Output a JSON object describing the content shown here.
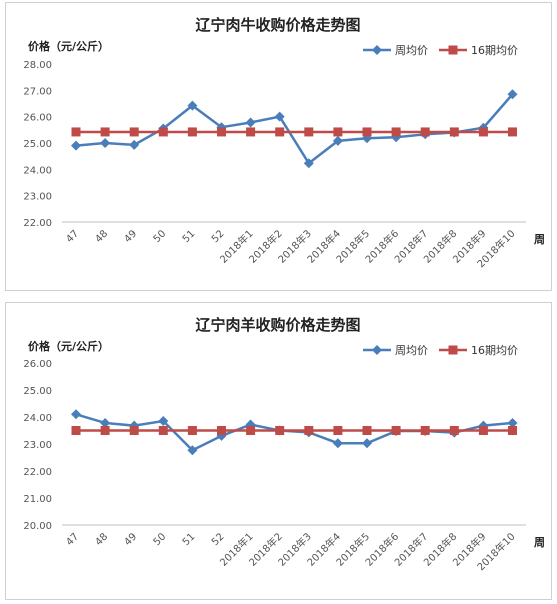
{
  "chart_data": [
    {
      "type": "line",
      "title": "辽宁肉牛收购价格走势图",
      "ylabel": "价格（元/公斤）",
      "xlabel": "周",
      "ylim": [
        22,
        28
      ],
      "yticks": [
        "22.00",
        "23.00",
        "24.00",
        "25.00",
        "26.00",
        "27.00",
        "28.00"
      ],
      "categories": [
        "47",
        "48",
        "49",
        "50",
        "51",
        "52",
        "2018年1",
        "2018年2",
        "2018年3",
        "2018年4",
        "2018年5",
        "2018年6",
        "2018年7",
        "2018年8",
        "2018年9",
        "2018年10"
      ],
      "series": [
        {
          "name": "周均价",
          "color": "#4a7ebb",
          "marker": "diamond",
          "values": [
            24.9,
            25.0,
            24.93,
            25.55,
            26.42,
            25.6,
            25.78,
            26.0,
            24.23,
            25.08,
            25.18,
            25.22,
            25.33,
            25.4,
            25.58,
            26.85
          ]
        },
        {
          "name": "16期均价",
          "color": "#be4b48",
          "marker": "square",
          "values": [
            25.42,
            25.42,
            25.42,
            25.42,
            25.42,
            25.42,
            25.42,
            25.42,
            25.42,
            25.42,
            25.42,
            25.42,
            25.42,
            25.42,
            25.42,
            25.42
          ]
        }
      ],
      "grid": false,
      "legend": "top-right"
    },
    {
      "type": "line",
      "title": "辽宁肉羊收购价格走势图",
      "ylabel": "价格（元/公斤）",
      "xlabel": "周",
      "ylim": [
        20,
        26
      ],
      "yticks": [
        "20.00",
        "21.00",
        "22.00",
        "23.00",
        "24.00",
        "25.00",
        "26.00"
      ],
      "categories": [
        "47",
        "48",
        "49",
        "50",
        "51",
        "52",
        "2018年1",
        "2018年2",
        "2018年3",
        "2018年4",
        "2018年5",
        "2018年6",
        "2018年7",
        "2018年8",
        "2018年9",
        "2018年10"
      ],
      "series": [
        {
          "name": "周均价",
          "color": "#4a7ebb",
          "marker": "diamond",
          "values": [
            24.1,
            23.78,
            23.68,
            23.85,
            22.77,
            23.3,
            23.72,
            23.5,
            23.43,
            23.03,
            23.03,
            23.48,
            23.48,
            23.42,
            23.68,
            23.78
          ]
        },
        {
          "name": "16期均价",
          "color": "#be4b48",
          "marker": "square",
          "values": [
            23.5,
            23.5,
            23.5,
            23.5,
            23.5,
            23.5,
            23.5,
            23.5,
            23.5,
            23.5,
            23.5,
            23.5,
            23.5,
            23.5,
            23.5,
            23.5
          ]
        }
      ],
      "grid": false,
      "legend": "top-right"
    }
  ]
}
